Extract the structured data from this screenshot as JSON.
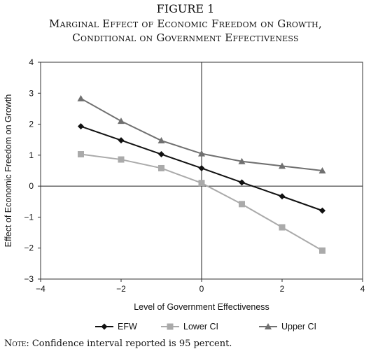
{
  "figure_label": "FIGURE 1",
  "title_line1": "Marginal Effect of Economic Freedom on Growth,",
  "title_line2": "Conditional on Government Effectiveness",
  "note_prefix": "Note:",
  "note_text": " Confidence interval reported is 95 percent.",
  "chart_data": {
    "type": "line",
    "xlabel": "Level of Government Effectiveness",
    "ylabel": "Effect of Economic Freedom on Growth",
    "xlim": [
      -4,
      4
    ],
    "ylim": [
      -3,
      4
    ],
    "x_ticks": [
      -4,
      -2,
      0,
      2,
      4
    ],
    "x_tick_labels": [
      "−4",
      "−2",
      "0",
      "2",
      "4"
    ],
    "y_ticks": [
      -3,
      -2,
      -1,
      0,
      1,
      2,
      3,
      4
    ],
    "y_tick_labels": [
      "−3",
      "−2",
      "−1",
      "0",
      "1",
      "2",
      "3",
      "4"
    ],
    "x": [
      -3,
      -2,
      -1,
      0,
      1,
      2,
      3
    ],
    "series": [
      {
        "name": "EFW",
        "values": [
          1.93,
          1.48,
          1.03,
          0.58,
          0.12,
          -0.33,
          -0.79
        ],
        "color": "#111111",
        "marker": "diamond"
      },
      {
        "name": "Lower CI",
        "values": [
          1.03,
          0.86,
          0.58,
          0.1,
          -0.58,
          -1.33,
          -2.08
        ],
        "color": "#aaaaaa",
        "marker": "square"
      },
      {
        "name": "Upper CI",
        "values": [
          2.83,
          2.1,
          1.47,
          1.05,
          0.8,
          0.65,
          0.5
        ],
        "color": "#707070",
        "marker": "triangle"
      }
    ],
    "grid": false,
    "legend_position": "bottom"
  }
}
